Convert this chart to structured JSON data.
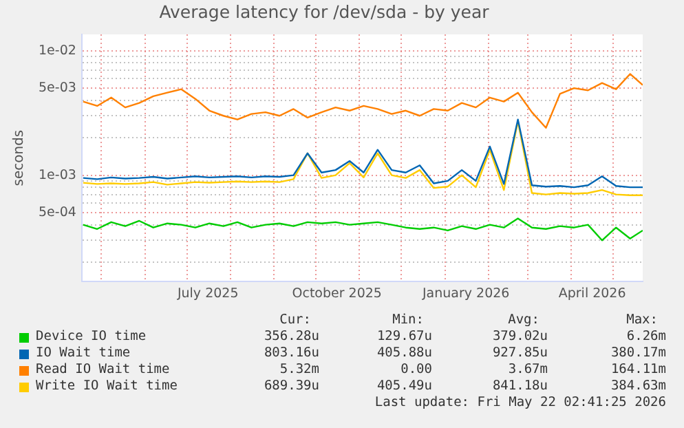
{
  "chart_data": {
    "type": "line",
    "title": "Average latency for /dev/sda - by year",
    "ylabel": "seconds",
    "log": "y",
    "grid": true,
    "legend": "bottom",
    "marker": "none",
    "line_style": "solid",
    "xlim": [
      "2025-04-17",
      "2026-05-22"
    ],
    "xticks": [
      {
        "value": "2025-05-01",
        "label": null
      },
      {
        "value": "2025-06-01",
        "label": null
      },
      {
        "value": "2025-07-01",
        "label": null
      },
      {
        "value": "2025-07-16",
        "label": "July 2025"
      },
      {
        "value": "2025-08-01",
        "label": null
      },
      {
        "value": "2025-09-01",
        "label": null
      },
      {
        "value": "2025-10-01",
        "label": null
      },
      {
        "value": "2025-10-16",
        "label": "October 2025"
      },
      {
        "value": "2025-11-01",
        "label": null
      },
      {
        "value": "2025-12-01",
        "label": null
      },
      {
        "value": "2026-01-01",
        "label": null
      },
      {
        "value": "2026-01-16",
        "label": "January 2026"
      },
      {
        "value": "2026-02-01",
        "label": null
      },
      {
        "value": "2026-03-01",
        "label": null
      },
      {
        "value": "2026-04-01",
        "label": null
      },
      {
        "value": "2026-04-16",
        "label": "April 2026"
      },
      {
        "value": "2026-05-01",
        "label": null
      }
    ],
    "ylim": [
      0.00014,
      0.0135
    ],
    "yticks": [
      {
        "value": 0.0002,
        "label": null
      },
      {
        "value": 0.0003,
        "label": null
      },
      {
        "value": 0.0004,
        "label": null
      },
      {
        "value": 0.0005,
        "label": "5e-04"
      },
      {
        "value": 0.0006,
        "label": null
      },
      {
        "value": 0.0007,
        "label": null
      },
      {
        "value": 0.0008,
        "label": null
      },
      {
        "value": 0.0009,
        "label": null
      },
      {
        "value": 0.001,
        "label": "1e-03"
      },
      {
        "value": 0.002,
        "label": null
      },
      {
        "value": 0.003,
        "label": null
      },
      {
        "value": 0.004,
        "label": null
      },
      {
        "value": 0.005,
        "label": "5e-03"
      },
      {
        "value": 0.006,
        "label": null
      },
      {
        "value": 0.007,
        "label": null
      },
      {
        "value": 0.008,
        "label": null
      },
      {
        "value": 0.009,
        "label": null
      },
      {
        "value": 0.01,
        "label": "1e-02"
      }
    ],
    "x": [
      "2025-04-18",
      "2025-04-28",
      "2025-05-08",
      "2025-05-18",
      "2025-05-28",
      "2025-06-07",
      "2025-06-17",
      "2025-06-27",
      "2025-07-07",
      "2025-07-17",
      "2025-07-27",
      "2025-08-06",
      "2025-08-16",
      "2025-08-26",
      "2025-09-05",
      "2025-09-15",
      "2025-09-25",
      "2025-10-05",
      "2025-10-15",
      "2025-10-25",
      "2025-11-04",
      "2025-11-14",
      "2025-11-24",
      "2025-12-04",
      "2025-12-14",
      "2025-12-24",
      "2026-01-03",
      "2026-01-13",
      "2026-01-23",
      "2026-02-02",
      "2026-02-12",
      "2026-02-22",
      "2026-03-04",
      "2026-03-14",
      "2026-03-24",
      "2026-04-03",
      "2026-04-13",
      "2026-04-23",
      "2026-05-03",
      "2026-05-13",
      "2026-05-22"
    ],
    "series": [
      {
        "name": "Device IO time",
        "color": "#00cc00",
        "values": [
          0.0004,
          0.00037,
          0.00042,
          0.00039,
          0.00043,
          0.00038,
          0.00041,
          0.0004,
          0.00038,
          0.00041,
          0.00039,
          0.00042,
          0.00038,
          0.0004,
          0.00041,
          0.00039,
          0.00042,
          0.00041,
          0.00042,
          0.0004,
          0.00041,
          0.00042,
          0.0004,
          0.00038,
          0.00037,
          0.00038,
          0.00036,
          0.00039,
          0.00037,
          0.0004,
          0.00038,
          0.00045,
          0.00038,
          0.00037,
          0.00039,
          0.00038,
          0.0004,
          0.0003,
          0.00038,
          0.00031,
          0.00036
        ]
      },
      {
        "name": "IO Wait time",
        "color": "#0066b3",
        "values": [
          0.00095,
          0.00093,
          0.00096,
          0.00094,
          0.00095,
          0.00097,
          0.00094,
          0.00096,
          0.00098,
          0.00096,
          0.00097,
          0.00098,
          0.00096,
          0.00098,
          0.00097,
          0.001,
          0.0015,
          0.00105,
          0.0011,
          0.0013,
          0.00105,
          0.0016,
          0.0011,
          0.00105,
          0.0012,
          0.00086,
          0.0009,
          0.0011,
          0.0009,
          0.0017,
          0.00085,
          0.0028,
          0.00083,
          0.00081,
          0.00082,
          0.0008,
          0.00083,
          0.00098,
          0.00082,
          0.0008,
          0.0008
        ]
      },
      {
        "name": "Read IO Wait time",
        "color": "#ff8000",
        "values": [
          0.0039,
          0.0036,
          0.0042,
          0.0035,
          0.0038,
          0.0043,
          0.0046,
          0.0049,
          0.0041,
          0.0033,
          0.003,
          0.0028,
          0.0031,
          0.0032,
          0.003,
          0.0034,
          0.0029,
          0.0032,
          0.0035,
          0.0033,
          0.0036,
          0.0034,
          0.0031,
          0.0033,
          0.003,
          0.0034,
          0.0033,
          0.0038,
          0.0035,
          0.0042,
          0.0039,
          0.0046,
          0.0032,
          0.0024,
          0.0045,
          0.005,
          0.0048,
          0.0055,
          0.0049,
          0.0065,
          0.0053
        ]
      },
      {
        "name": "Write IO Wait time",
        "color": "#ffcc00",
        "values": [
          0.00087,
          0.00085,
          0.00086,
          0.00085,
          0.00086,
          0.00088,
          0.00084,
          0.00086,
          0.00088,
          0.00087,
          0.00088,
          0.00089,
          0.00088,
          0.00089,
          0.00088,
          0.00093,
          0.0015,
          0.00095,
          0.001,
          0.00125,
          0.00096,
          0.0015,
          0.001,
          0.00095,
          0.0011,
          0.00079,
          0.00081,
          0.001,
          0.0008,
          0.0016,
          0.00076,
          0.0027,
          0.00072,
          0.0007,
          0.00072,
          0.00071,
          0.00072,
          0.00076,
          0.0007,
          0.00069,
          0.00069
        ]
      }
    ],
    "annotations": [
      "Cur:",
      "Min:",
      "Avg:",
      "Max:",
      "356.28u",
      "129.67u",
      "379.02u",
      "6.26m",
      "803.16u",
      "405.88u",
      "927.85u",
      "380.17m",
      "5.32m",
      "0.00",
      "3.67m",
      "164.11m",
      "689.39u",
      "405.49u",
      "841.18u",
      "384.63m",
      "Last update: Fri May 22 02:41:25 2026"
    ]
  }
}
